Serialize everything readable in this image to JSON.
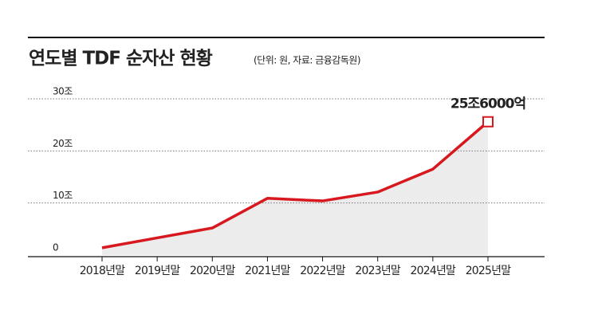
{
  "chart_data": {
    "type": "line",
    "title": "연도별 TDF 순자산 현황",
    "subtitle": "(단위: 원, 자료: 금융감독원)",
    "categories": [
      "2018년말",
      "2019년말",
      "2020년말",
      "2021년말",
      "2022년말",
      "2023년말",
      "2024년말",
      "2025년말"
    ],
    "values": [
      1.4,
      3.3,
      5.2,
      10.9,
      10.4,
      12.1,
      16.5,
      25.6
    ],
    "value_labels": [
      null,
      null,
      null,
      null,
      null,
      null,
      null,
      "25조6000억"
    ],
    "color": "#d7191f",
    "area_color": "#ececec",
    "ylim": [
      0,
      30
    ],
    "yticks": [
      0,
      {
        "value": 10,
        "label": "10조"
      },
      {
        "value": 20,
        "label": "20조"
      },
      {
        "value": 30,
        "label": "30조"
      }
    ],
    "grid": true
  }
}
